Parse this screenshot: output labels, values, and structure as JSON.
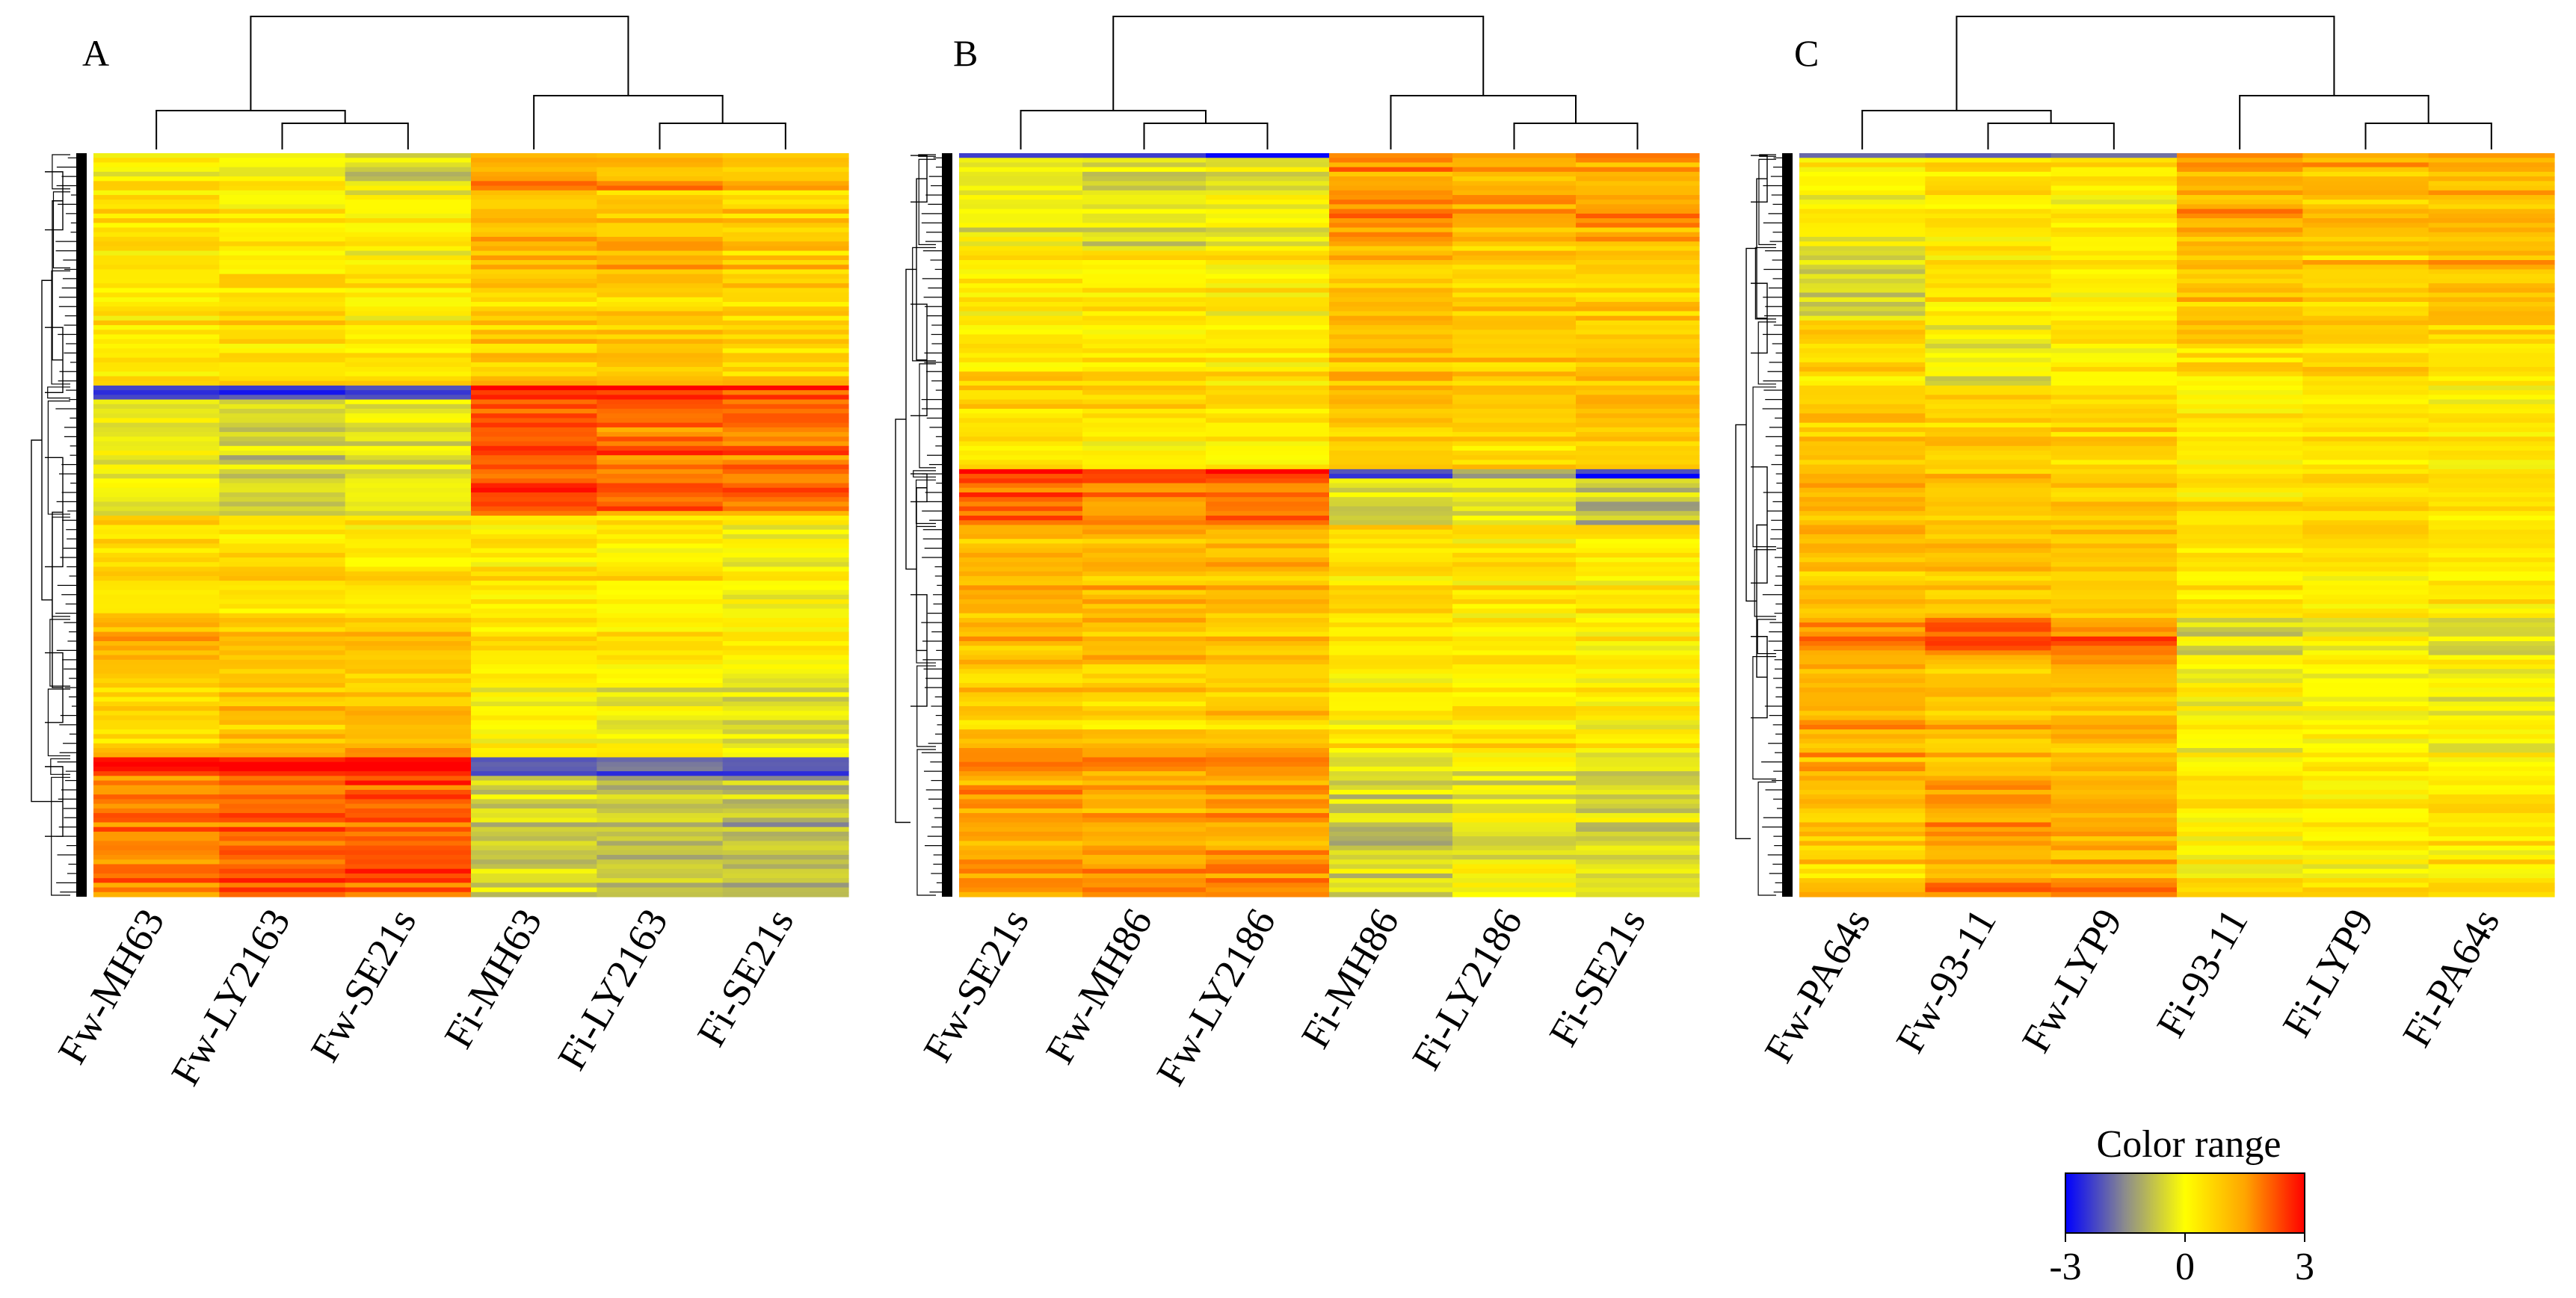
{
  "figure_title": "",
  "chart_data": [
    {
      "type": "heatmap",
      "panel_label": "A",
      "columns": [
        "Fw-MH63",
        "Fw-LY2163",
        "Fw-SE21s",
        "Fi-MH63",
        "Fi-LY2163",
        "Fi-SE21s"
      ],
      "column_dendrogram": "((Fw-MH63,(Fw-LY2163,Fw-SE21s)),(Fi-MH63,(Fi-LY2163,Fi-SE21s)))",
      "row_count": 160,
      "row_clusters": [
        {
          "rows": [
            0,
            8
          ],
          "values": [
            0.3,
            0.2,
            -0.3,
            1.7,
            1.5,
            1.3
          ]
        },
        {
          "rows": [
            8,
            25
          ],
          "values": [
            0.5,
            0.2,
            0.1,
            1.2,
            1.1,
            0.9
          ]
        },
        {
          "rows": [
            25,
            50
          ],
          "values": [
            0.3,
            0.5,
            0.3,
            0.8,
            0.9,
            0.8
          ]
        },
        {
          "rows": [
            50,
            53
          ],
          "values": [
            -2.4,
            -2.5,
            -2.3,
            2.6,
            2.5,
            2.3
          ]
        },
        {
          "rows": [
            53,
            78
          ],
          "values": [
            -0.3,
            -0.6,
            -0.4,
            2.2,
            2.0,
            1.9
          ]
        },
        {
          "rows": [
            78,
            100
          ],
          "values": [
            0.8,
            0.6,
            0.5,
            0.5,
            0.4,
            0.2
          ]
        },
        {
          "rows": [
            100,
            115
          ],
          "values": [
            1.1,
            0.9,
            0.8,
            0.3,
            0.2,
            0.0
          ]
        },
        {
          "rows": [
            115,
            130
          ],
          "values": [
            0.7,
            1.0,
            1.2,
            0.0,
            -0.3,
            -0.4
          ]
        },
        {
          "rows": [
            130,
            134
          ],
          "values": [
            2.6,
            2.6,
            2.7,
            -2.3,
            -2.3,
            -2.4
          ]
        },
        {
          "rows": [
            134,
            160
          ],
          "values": [
            1.9,
            2.1,
            2.3,
            -0.6,
            -0.8,
            -0.9
          ]
        }
      ],
      "color_scale": [
        -3,
        3
      ]
    },
    {
      "type": "heatmap",
      "panel_label": "B",
      "columns": [
        "Fw-SE21s",
        "Fw-MH86",
        "Fw-LY2186",
        "Fi-MH86",
        "Fi-LY2186",
        "Fi-SE21s"
      ],
      "column_dendrogram": "((Fw-SE21s,(Fw-MH86,Fw-LY2186)),(Fi-MH86,(Fi-LY2186,Fi-SE21s)))",
      "row_count": 160,
      "row_clusters": [
        {
          "rows": [
            0,
            1
          ],
          "values": [
            -2.5,
            -2.5,
            -2.5,
            2.0,
            2.0,
            2.0
          ]
        },
        {
          "rows": [
            1,
            20
          ],
          "values": [
            -0.2,
            -0.4,
            -0.3,
            1.6,
            1.4,
            1.5
          ]
        },
        {
          "rows": [
            20,
            45
          ],
          "values": [
            0.4,
            0.3,
            0.3,
            1.1,
            0.9,
            0.9
          ]
        },
        {
          "rows": [
            45,
            68
          ],
          "values": [
            0.5,
            0.4,
            0.4,
            0.9,
            0.8,
            1.0
          ]
        },
        {
          "rows": [
            68,
            70
          ],
          "values": [
            2.5,
            2.2,
            2.4,
            -2.7,
            -1.2,
            -2.8
          ]
        },
        {
          "rows": [
            70,
            80
          ],
          "values": [
            2.2,
            1.9,
            2.1,
            -0.6,
            -0.3,
            -0.8
          ]
        },
        {
          "rows": [
            80,
            110
          ],
          "values": [
            1.2,
            1.2,
            1.1,
            0.5,
            0.4,
            0.3
          ]
        },
        {
          "rows": [
            110,
            128
          ],
          "values": [
            0.9,
            0.8,
            0.9,
            0.3,
            0.4,
            0.2
          ]
        },
        {
          "rows": [
            128,
            160
          ],
          "values": [
            1.5,
            1.4,
            1.5,
            -0.6,
            -0.3,
            -0.5
          ]
        }
      ],
      "color_scale": [
        -3,
        3
      ]
    },
    {
      "type": "heatmap",
      "panel_label": "C",
      "columns": [
        "Fw-PA64s",
        "Fw-93-11",
        "Fw-LYP9",
        "Fi-93-11",
        "Fi-LYP9",
        "Fi-PA64s"
      ],
      "column_dendrogram": "((Fw-PA64s,(Fw-93-11,Fw-LYP9)),(Fi-93-11,(Fi-LYP9,Fi-PA64s)))",
      "row_count": 160,
      "row_clusters": [
        {
          "rows": [
            0,
            1
          ],
          "values": [
            -2.0,
            -2.0,
            -2.0,
            1.8,
            1.8,
            2.0
          ]
        },
        {
          "rows": [
            1,
            20
          ],
          "values": [
            0.1,
            0.4,
            0.3,
            1.3,
            1.1,
            1.0
          ]
        },
        {
          "rows": [
            20,
            36
          ],
          "values": [
            -0.5,
            0.5,
            0.3,
            1.0,
            0.9,
            1.1
          ]
        },
        {
          "rows": [
            36,
            50
          ],
          "values": [
            0.6,
            -0.3,
            0.2,
            0.6,
            0.7,
            0.5
          ]
        },
        {
          "rows": [
            50,
            85
          ],
          "values": [
            1.0,
            0.9,
            0.8,
            0.4,
            0.5,
            0.3
          ]
        },
        {
          "rows": [
            85,
            100
          ],
          "values": [
            0.9,
            0.8,
            0.7,
            0.3,
            0.2,
            0.1
          ]
        },
        {
          "rows": [
            100,
            108
          ],
          "values": [
            1.8,
            2.2,
            1.9,
            -0.4,
            -0.2,
            -0.5
          ]
        },
        {
          "rows": [
            108,
            135
          ],
          "values": [
            1.3,
            1.0,
            1.2,
            0.1,
            0.1,
            0.0
          ]
        },
        {
          "rows": [
            135,
            160
          ],
          "values": [
            0.9,
            1.6,
            1.4,
            0.3,
            0.2,
            0.4
          ]
        }
      ],
      "color_scale": [
        -3,
        3
      ]
    }
  ],
  "legend": {
    "title": "Color range",
    "min_label": "-3",
    "mid_label": "0",
    "max_label": "3",
    "colors": [
      "#0000ff",
      "#8c8c8c",
      "#ffff00",
      "#ffa500",
      "#ff0000"
    ]
  }
}
